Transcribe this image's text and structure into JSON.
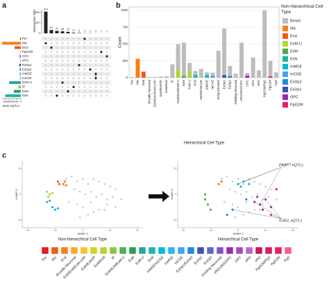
{
  "panel_labels": [
    "a",
    "b",
    "c"
  ],
  "chart_data": [
    {
      "type": "upset",
      "ylabel": "Intersection Size",
      "xlabel": "Num eQTLs",
      "sets": [
        "Per",
        "Mic",
        "End",
        "PgG2M",
        "OPC",
        "vRG",
        "ExDp1",
        "ExDp2",
        "InMGE",
        "InCGE",
        "ExM-U",
        "IP",
        "ExM",
        "ExN"
      ],
      "set_sizes": [
        10,
        240,
        80,
        5,
        15,
        5,
        20,
        15,
        15,
        10,
        150,
        30,
        90,
        200
      ],
      "set_colors": [
        "#e41a1c",
        "#f57f17",
        "#f05a1a",
        "#e91e63",
        "#ab47bc",
        "#c2185b",
        "#3f51b5",
        "#5c6bc0",
        "#29b6f6",
        "#42a5f5",
        "#26a69a",
        "#8bc34a",
        "#2e9e4f",
        "#1fb5a8"
      ],
      "xlim": [
        250,
        0
      ],
      "xticks": [
        200,
        150,
        100,
        50,
        0
      ],
      "intersections": [
        [
          1
        ],
        [
          2
        ],
        [
          13
        ],
        [
          10
        ],
        [
          12
        ],
        [
          11
        ],
        [
          6
        ],
        [
          0
        ],
        [
          7
        ],
        [
          9,
          8
        ],
        [
          3
        ],
        [
          4
        ]
      ],
      "values": [
        414,
        64,
        47,
        38,
        29,
        12,
        8,
        3,
        3,
        2,
        1,
        1
      ],
      "ylim": [
        0,
        450
      ],
      "yticks": [
        0,
        200,
        400
      ]
    },
    {
      "type": "bar",
      "ylabel": "Count",
      "xlabel": "Hierarchical Cell Type",
      "legend_title": "Non-hierarchical Cell Type",
      "ylim": [
        0,
        1050
      ],
      "yticks": [
        0,
        250,
        500,
        750,
        1000
      ],
      "grid": true,
      "categories": [
        "Per",
        "Mic",
        "End",
        "Broadly Neuronal",
        "ExM/ExN/ExM-U/IP",
        "ExM/ExN/IP",
        "ExM/ExN",
        "IP",
        "ExM/ExN/ExM-U",
        "ExM",
        "ExM-U",
        "ExN",
        "InMGE/InCGE",
        "InMGE",
        "InCGE",
        "ExDp1/ExDp2",
        "ExDp1",
        "ExDp2",
        "Dividing Neuronal",
        "vRG/oRG/OPC",
        "OPC",
        "oRG",
        "vRG",
        "PgG2M/PgS",
        "PgG2M",
        "PgS"
      ],
      "series": [
        {
          "name": "Broad",
          "color": "#bdbdbd",
          "values": [
            10,
            null,
            null,
            10,
            12,
            18,
            22,
            200,
            380,
            490,
            120,
            60,
            130,
            40,
            45,
            400,
            690,
            150,
            60,
            520,
            40,
            300,
            110,
            1000,
            230,
            80
          ]
        },
        {
          "name": "Mic",
          "color": "#f57f17",
          "values": [
            null,
            280,
            null,
            null,
            null,
            null,
            null,
            null,
            null,
            null,
            null,
            null,
            null,
            null,
            null,
            null,
            null,
            null,
            null,
            null,
            null,
            null,
            null,
            null,
            null,
            null
          ]
        },
        {
          "name": "End",
          "color": "#f05a1a",
          "values": [
            null,
            null,
            90,
            null,
            null,
            null,
            null,
            null,
            null,
            null,
            null,
            null,
            null,
            null,
            null,
            null,
            null,
            null,
            null,
            null,
            null,
            null,
            null,
            null,
            null,
            null
          ]
        },
        {
          "name": "ExM-U",
          "color": "#b5d334",
          "values": [
            null,
            null,
            null,
            null,
            null,
            null,
            null,
            null,
            120,
            null,
            100,
            null,
            null,
            null,
            null,
            null,
            null,
            null,
            null,
            null,
            null,
            null,
            null,
            null,
            null,
            null
          ]
        },
        {
          "name": "ExM",
          "color": "#4caf50",
          "values": [
            null,
            null,
            null,
            null,
            null,
            null,
            null,
            null,
            null,
            30,
            null,
            null,
            null,
            null,
            null,
            null,
            null,
            null,
            null,
            null,
            null,
            null,
            null,
            null,
            null,
            null
          ]
        },
        {
          "name": "ExN",
          "color": "#1fb5a8",
          "values": [
            null,
            null,
            null,
            null,
            null,
            null,
            null,
            null,
            null,
            null,
            null,
            40,
            null,
            null,
            null,
            null,
            null,
            null,
            null,
            null,
            null,
            null,
            null,
            null,
            null,
            null
          ]
        },
        {
          "name": "InMGE",
          "color": "#00bcd4",
          "values": [
            null,
            null,
            null,
            null,
            null,
            null,
            null,
            null,
            null,
            null,
            null,
            null,
            null,
            40,
            null,
            null,
            null,
            null,
            null,
            null,
            null,
            null,
            null,
            null,
            null,
            null
          ]
        },
        {
          "name": "InCGE",
          "color": "#42a5f5",
          "values": [
            null,
            null,
            null,
            null,
            null,
            null,
            null,
            null,
            null,
            null,
            null,
            null,
            null,
            null,
            30,
            null,
            null,
            null,
            null,
            null,
            null,
            null,
            null,
            null,
            null,
            null
          ]
        },
        {
          "name": "ExDp2",
          "color": "#1e88e5",
          "values": [
            null,
            null,
            null,
            null,
            null,
            null,
            null,
            null,
            null,
            null,
            null,
            null,
            null,
            null,
            null,
            null,
            null,
            25,
            null,
            null,
            null,
            null,
            null,
            null,
            null,
            null
          ]
        },
        {
          "name": "ExDp1",
          "color": "#3f51b5",
          "values": [
            null,
            null,
            null,
            null,
            null,
            null,
            null,
            null,
            null,
            null,
            null,
            null,
            null,
            null,
            null,
            null,
            40,
            null,
            null,
            null,
            null,
            null,
            null,
            null,
            null,
            null
          ]
        },
        {
          "name": "OPC",
          "color": "#9c27b0",
          "values": [
            null,
            null,
            null,
            null,
            null,
            null,
            null,
            null,
            null,
            null,
            null,
            null,
            null,
            null,
            null,
            null,
            null,
            null,
            null,
            null,
            30,
            null,
            null,
            null,
            null,
            null
          ]
        },
        {
          "name": "PgG2M",
          "color": "#e91e63",
          "values": [
            null,
            null,
            null,
            null,
            null,
            null,
            null,
            null,
            null,
            null,
            null,
            null,
            null,
            null,
            null,
            null,
            null,
            null,
            null,
            null,
            null,
            null,
            null,
            null,
            20,
            null
          ]
        }
      ]
    },
    {
      "type": "scatter",
      "title": "Non-hierarchical Cell Type",
      "xlabel": "UMAP-1",
      "ylabel": "UMAP-2",
      "xlim": [
        -22,
        22
      ],
      "ylim": [
        -13,
        13
      ],
      "xticks": [
        -20,
        -10,
        0,
        10,
        20
      ],
      "yticks": [
        -10,
        0,
        10
      ],
      "series": [
        {
          "color": "#c8c8c8",
          "x": [
            -6,
            -4,
            -2,
            0,
            2,
            4,
            6,
            8,
            10,
            12,
            -3,
            -1,
            1,
            3,
            5,
            7,
            9,
            11,
            -5,
            -2,
            0,
            3,
            6,
            9,
            12,
            14,
            2,
            4,
            -1,
            8
          ],
          "y": [
            6,
            7,
            5,
            6,
            4,
            6,
            5,
            4,
            3,
            2,
            2,
            1,
            0,
            1,
            -1,
            0,
            -2,
            -1,
            -3,
            -4,
            -5,
            -3,
            -6,
            -4,
            -5,
            -2,
            -8,
            -7,
            -9,
            -6
          ]
        },
        {
          "color": "#f57f17",
          "x": [
            -7,
            -6.5,
            -6
          ],
          "y": [
            4,
            5,
            3.5
          ]
        },
        {
          "color": "#f05a1a",
          "x": [
            -9,
            -8.5
          ],
          "y": [
            5,
            4
          ]
        },
        {
          "color": "#b5d334",
          "x": [
            -13,
            -12,
            -12.5,
            -11
          ],
          "y": [
            1,
            0,
            -1,
            0.5
          ]
        },
        {
          "color": "#1fb5a8",
          "x": [
            -13,
            -12
          ],
          "y": [
            -3,
            -2.5
          ]
        },
        {
          "color": "#00bcd4",
          "x": [
            -11,
            -10,
            -9
          ],
          "y": [
            -5,
            -6,
            -5.5
          ]
        }
      ]
    },
    {
      "type": "scatter",
      "title": "Hierarchical Cell Type",
      "xlabel": "UMAP-1",
      "ylabel": "UMAP-2",
      "xlim": [
        -22,
        22
      ],
      "ylim": [
        -13,
        13
      ],
      "xticks": [
        -20,
        -10,
        0,
        10,
        20
      ],
      "yticks": [
        -10,
        0,
        10
      ],
      "annotations": [
        "FABP7 eQTLs",
        "ICA1L eQTLs"
      ],
      "series": [
        {
          "color": "#c8c8c8",
          "x": [
            -6,
            -4,
            -2,
            0,
            2,
            4,
            6,
            8,
            10,
            12,
            -3,
            -1,
            1,
            3,
            5,
            7,
            9,
            11,
            -5,
            -2,
            0,
            3,
            6,
            9,
            12,
            14,
            2,
            4,
            -1,
            8
          ],
          "y": [
            6,
            7,
            5,
            6,
            4,
            6,
            5,
            4,
            3,
            2,
            2,
            1,
            0,
            1,
            -1,
            0,
            -2,
            -1,
            -3,
            -4,
            -5,
            -3,
            -6,
            -4,
            -5,
            -2,
            -8,
            -7,
            -9,
            -6
          ]
        },
        {
          "color": "#4caf50",
          "x": [
            -12,
            -11,
            -10,
            -12
          ],
          "y": [
            -2,
            -4,
            -6,
            0
          ]
        },
        {
          "color": "#9c27b0",
          "x": [
            6,
            8,
            10,
            12,
            9,
            7
          ],
          "y": [
            -3,
            -4,
            -2,
            -5,
            -6,
            -1
          ]
        },
        {
          "color": "#00bcd4",
          "x": [
            0,
            2,
            4,
            1
          ],
          "y": [
            4,
            5,
            4,
            3
          ]
        },
        {
          "color": "#f57f17",
          "x": [
            -7,
            -6
          ],
          "y": [
            4,
            5
          ]
        },
        {
          "color": "#e91e63",
          "x": [
            14,
            12
          ],
          "y": [
            2,
            -8
          ]
        },
        {
          "color": "#1e88e5",
          "x": [
            -4,
            -2,
            3
          ],
          "y": [
            -8,
            -6,
            -2
          ]
        }
      ]
    }
  ],
  "legend_strip": {
    "labels": [
      "Per",
      "Mic",
      "End",
      "Broadly Neuronal",
      "ExM/ExN/ExM-U/IP",
      "ExM/ExN/IP",
      "ExM/ExN",
      "IP",
      "ExM/ExN/ExM-U",
      "ExM",
      "ExM-U",
      "ExN",
      "InMGE/InCGE",
      "InMGE",
      "InCGE",
      "ExDp1/ExDp2",
      "ExDp1",
      "ExDp2",
      "Dividing Neuronal",
      "vRG/oRG/OPC",
      "OPC",
      "oRG",
      "vRG",
      "PgG2M/PgS",
      "PgG2M",
      "PgS"
    ],
    "colors": [
      "#e41a1c",
      "#f05a1a",
      "#f57f17",
      "#f9a825",
      "#fbc02d",
      "#d4d421",
      "#b5d334",
      "#8bc34a",
      "#4caf50",
      "#2e9e4f",
      "#26a69a",
      "#1fb5a8",
      "#00bcd4",
      "#29b6f6",
      "#42a5f5",
      "#1e88e5",
      "#3f51b5",
      "#5c6bc0",
      "#7e57c2",
      "#9c27b0",
      "#ab47bc",
      "#ba68c8",
      "#c2185b",
      "#d81b60",
      "#e91e63",
      "#f06292"
    ]
  }
}
